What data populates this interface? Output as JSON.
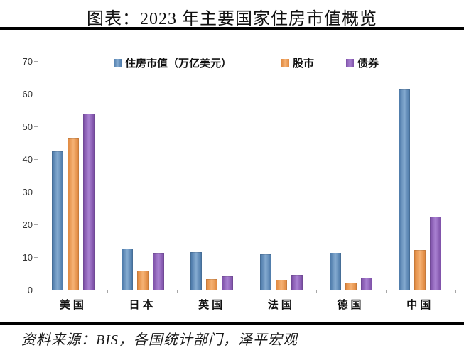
{
  "header": {
    "title": "图表：2023 年主要国家住房市值概览"
  },
  "chart_data": {
    "type": "bar",
    "title": "图表：2023 年主要国家住房市值概览",
    "categories": [
      "美国",
      "日本",
      "英国",
      "法国",
      "德国",
      "中国"
    ],
    "series": [
      {
        "name": "住房市值（万亿美元）",
        "color": "#5b89b8",
        "color_edge": "#4d7aa9",
        "color_mid": "#85abd1",
        "values": [
          42.3,
          12.6,
          11.6,
          10.8,
          11.3,
          61.3
        ]
      },
      {
        "name": "股市",
        "color": "#ee9b55",
        "color_edge": "#e08a41",
        "color_mid": "#f6b274",
        "values": [
          46.3,
          5.8,
          3.2,
          3.1,
          2.2,
          12.1
        ]
      },
      {
        "name": "债券",
        "color": "#8f63be",
        "color_edge": "#7e51a8",
        "color_mid": "#a981d2",
        "values": [
          53.9,
          11.1,
          4.2,
          4.4,
          3.7,
          22.4
        ]
      }
    ],
    "ylabel": "",
    "xlabel": "",
    "ylim": [
      0,
      70
    ],
    "ytick_step": 10,
    "ytick_labels": [
      "0",
      "10",
      "20",
      "30",
      "40",
      "50",
      "60",
      "70"
    ],
    "grid": false,
    "legend_position": "top"
  },
  "footer": {
    "source_label": "资料来源：BIS，各国统计部门，泽平宏观"
  }
}
